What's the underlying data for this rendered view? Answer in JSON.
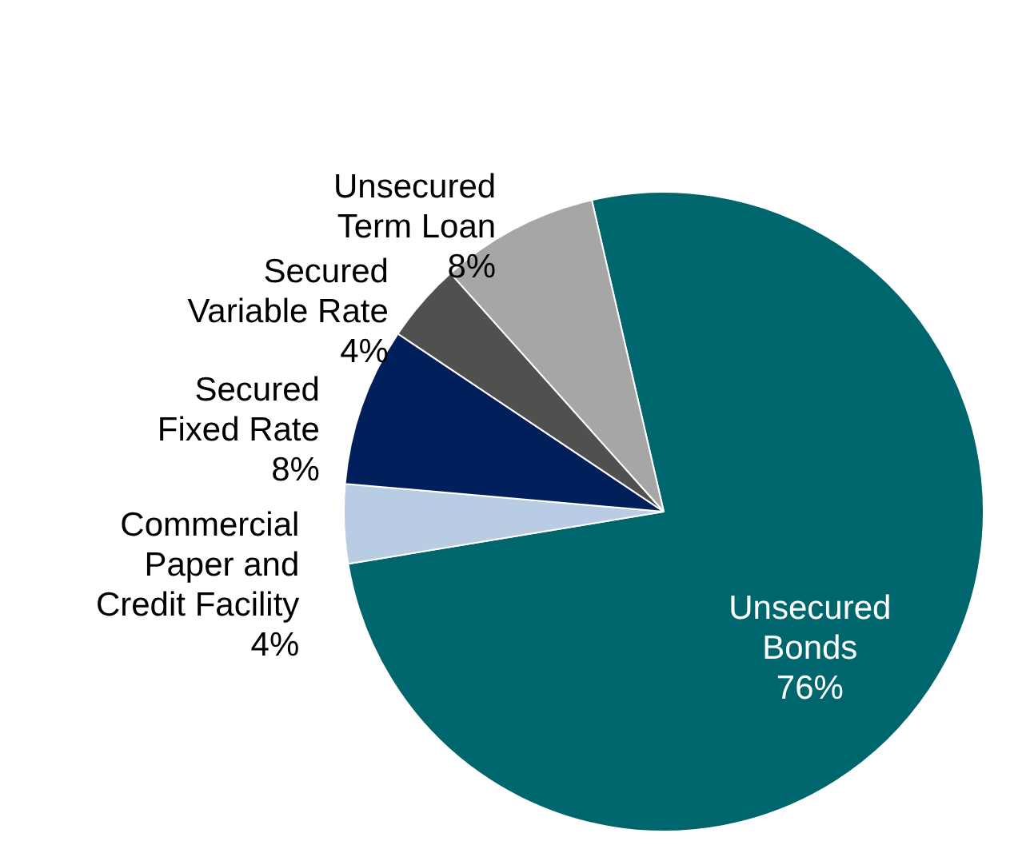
{
  "chart_data": {
    "type": "pie",
    "categories": [
      "Unsecured\nBonds",
      "Commercial\nPaper and\nCredit Facility",
      "Secured\nFixed Rate",
      "Secured\nVariable Rate",
      "Unsecured\nTerm Loan"
    ],
    "values": [
      76,
      4,
      8,
      4,
      8
    ],
    "colors": [
      "#00666e",
      "#b8cce4",
      "#001f5b",
      "#505050",
      "#a6a6a6"
    ],
    "value_labels": [
      "76%",
      "4%",
      "8%",
      "4%",
      "8%"
    ]
  }
}
